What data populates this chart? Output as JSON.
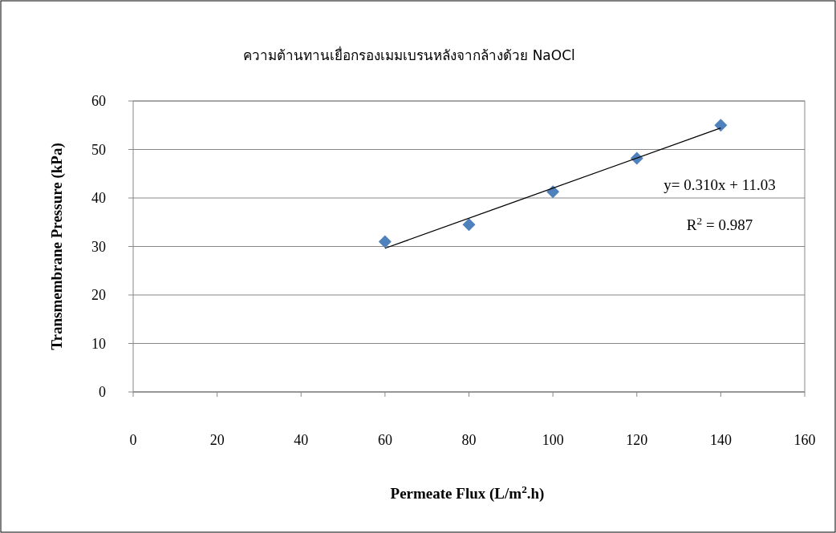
{
  "chart_data": {
    "type": "scatter",
    "title": "ความต้านทานเยื่อกรองเมมเบรนหลังจากล้างด้วย NaOCl",
    "xlabel": "Permeate Flux (L/m$^{2}$.h)",
    "ylabel": "Transmembrane Pressure (kPa)",
    "xlim": [
      0,
      160
    ],
    "ylim": [
      0,
      60
    ],
    "xticks": [
      0,
      20,
      40,
      60,
      80,
      100,
      120,
      140,
      160
    ],
    "yticks": [
      0,
      10,
      20,
      30,
      40,
      50,
      60
    ],
    "grid": "y",
    "marker": "diamond",
    "series": [
      {
        "x": [
          60,
          80,
          100,
          120,
          140
        ],
        "values": [
          31,
          34.5,
          41.3,
          48.2,
          55
        ],
        "color": "#4f81bd"
      },
      {
        "type": "line",
        "x": [
          60,
          140
        ],
        "values": [
          29.63,
          54.43
        ],
        "color": "#000000",
        "marker": "none"
      }
    ],
    "annotations": [
      "y= 0.310x + 11.03",
      "R$^{2}$ = 0.987"
    ]
  }
}
